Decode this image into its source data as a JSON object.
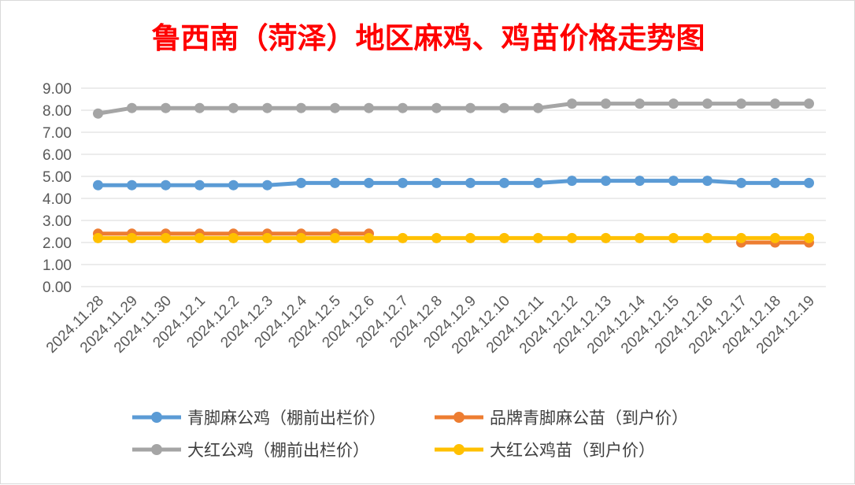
{
  "chart_data": {
    "type": "line",
    "title": "鲁西南（菏泽）地区麻鸡、鸡苗价格走势图",
    "title_color": "#ff0000",
    "categories": [
      "2024.11.28",
      "2024.11.29",
      "2024.11.30",
      "2024.12.1",
      "2024.12.2",
      "2024.12.3",
      "2024.12.4",
      "2024.12.5",
      "2024.12.6",
      "2024.12.7",
      "2024.12.8",
      "2024.12.9",
      "2024.12.10",
      "2024.12.11",
      "2024.12.12",
      "2024.12.13",
      "2024.12.14",
      "2024.12.15",
      "2024.12.16",
      "2024.12.17",
      "2024.12.18",
      "2024.12.19"
    ],
    "ylim": [
      0,
      9
    ],
    "yticks": [
      "0.00",
      "1.00",
      "2.00",
      "3.00",
      "4.00",
      "5.00",
      "6.00",
      "7.00",
      "8.00",
      "9.00"
    ],
    "grid": true,
    "legend_position": "bottom",
    "series": [
      {
        "name": "青脚麻公鸡（棚前出栏价）",
        "color": "#5b9bd5",
        "values": [
          4.6,
          4.6,
          4.6,
          4.6,
          4.6,
          4.6,
          4.7,
          4.7,
          4.7,
          4.7,
          4.7,
          4.7,
          4.7,
          4.7,
          4.8,
          4.8,
          4.8,
          4.8,
          4.8,
          4.7,
          4.7,
          4.7
        ]
      },
      {
        "name": "品牌青脚麻公苗（到户价）",
        "color": "#ed7d31",
        "values": [
          2.4,
          2.4,
          2.4,
          2.4,
          2.4,
          2.4,
          2.4,
          2.4,
          2.4,
          null,
          null,
          null,
          null,
          null,
          null,
          null,
          null,
          null,
          null,
          2.0,
          2.0,
          2.0
        ]
      },
      {
        "name": "大红公鸡（棚前出栏价）",
        "color": "#a5a5a5",
        "values": [
          7.85,
          8.1,
          8.1,
          8.1,
          8.1,
          8.1,
          8.1,
          8.1,
          8.1,
          8.1,
          8.1,
          8.1,
          8.1,
          8.1,
          8.3,
          8.3,
          8.3,
          8.3,
          8.3,
          8.3,
          8.3,
          8.3
        ]
      },
      {
        "name": "大红公鸡苗（到户价）",
        "color": "#ffc000",
        "values": [
          2.2,
          2.2,
          2.2,
          2.2,
          2.2,
          2.2,
          2.2,
          2.2,
          2.2,
          2.2,
          2.2,
          2.2,
          2.2,
          2.2,
          2.2,
          2.2,
          2.2,
          2.2,
          2.2,
          2.2,
          2.2,
          2.2
        ]
      }
    ]
  }
}
